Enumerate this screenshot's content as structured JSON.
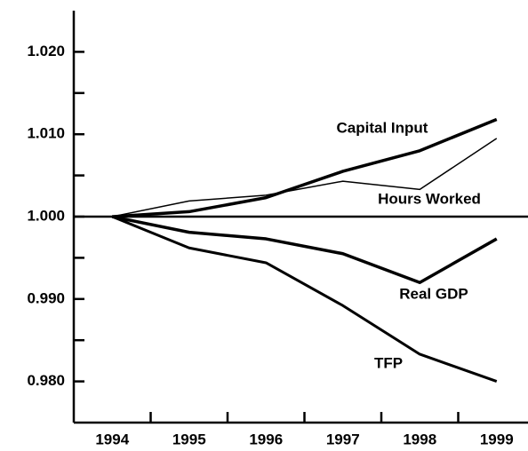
{
  "chart_data": {
    "type": "line",
    "categories": [
      "1994",
      "1995",
      "1996",
      "1997",
      "1998",
      "1999"
    ],
    "series": [
      {
        "name": "Capital Input",
        "color": "#000000",
        "line_width": 3.5,
        "values": [
          1.0,
          1.0006,
          1.0023,
          1.0055,
          1.008,
          1.0118
        ]
      },
      {
        "name": "Hours Worked",
        "color": "#000000",
        "line_width": 1.5,
        "values": [
          1.0,
          1.0019,
          1.0026,
          1.0043,
          1.0033,
          1.0095
        ]
      },
      {
        "name": "Real GDP",
        "color": "#000000",
        "line_width": 3.5,
        "values": [
          1.0,
          0.9981,
          0.9973,
          0.9955,
          0.992,
          0.9973
        ]
      },
      {
        "name": "TFP",
        "color": "#000000",
        "line_width": 3,
        "values": [
          1.0,
          0.9962,
          0.9944,
          0.9892,
          0.9833,
          0.98
        ]
      }
    ],
    "ylim": [
      0.975,
      1.025
    ],
    "yticks": [
      {
        "value": 0.98,
        "label": "0.980"
      },
      {
        "value": 0.99,
        "label": "0.990"
      },
      {
        "value": 1.0,
        "label": "1.000"
      },
      {
        "value": 1.01,
        "label": "1.010"
      },
      {
        "value": 1.02,
        "label": "1.020"
      }
    ],
    "yminor_ticks": [
      0.985,
      0.995,
      1.005,
      1.015
    ],
    "hline": 1.0,
    "grid": false
  }
}
